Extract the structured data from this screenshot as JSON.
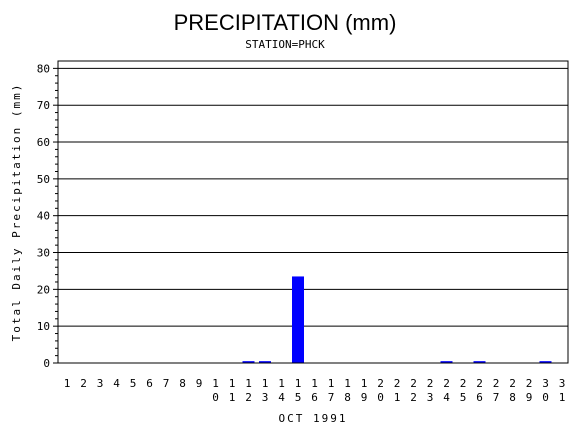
{
  "chart_data": {
    "type": "bar",
    "title": "PRECIPITATION (mm)",
    "subtitle": "STATION=PHCK",
    "xlabel": "OCT 1991",
    "ylabel": "Total Daily Precipitation (mm)",
    "ylim": [
      0,
      82
    ],
    "yticks": [
      0,
      10,
      20,
      30,
      40,
      50,
      60,
      70,
      80
    ],
    "grid": true,
    "categories": [
      "1",
      "2",
      "3",
      "4",
      "5",
      "6",
      "7",
      "8",
      "9",
      "10",
      "11",
      "12",
      "13",
      "14",
      "15",
      "16",
      "17",
      "18",
      "19",
      "20",
      "21",
      "22",
      "23",
      "24",
      "25",
      "26",
      "27",
      "28",
      "29",
      "30",
      "31"
    ],
    "values": [
      0,
      0,
      0,
      0,
      0,
      0,
      0,
      0,
      0,
      0,
      0,
      0.5,
      0.5,
      0,
      23.5,
      0,
      0,
      0,
      0,
      0,
      0,
      0,
      0,
      0.5,
      0,
      0.5,
      0,
      0,
      0,
      0.5,
      0
    ],
    "bar_color": "#0000ff"
  }
}
